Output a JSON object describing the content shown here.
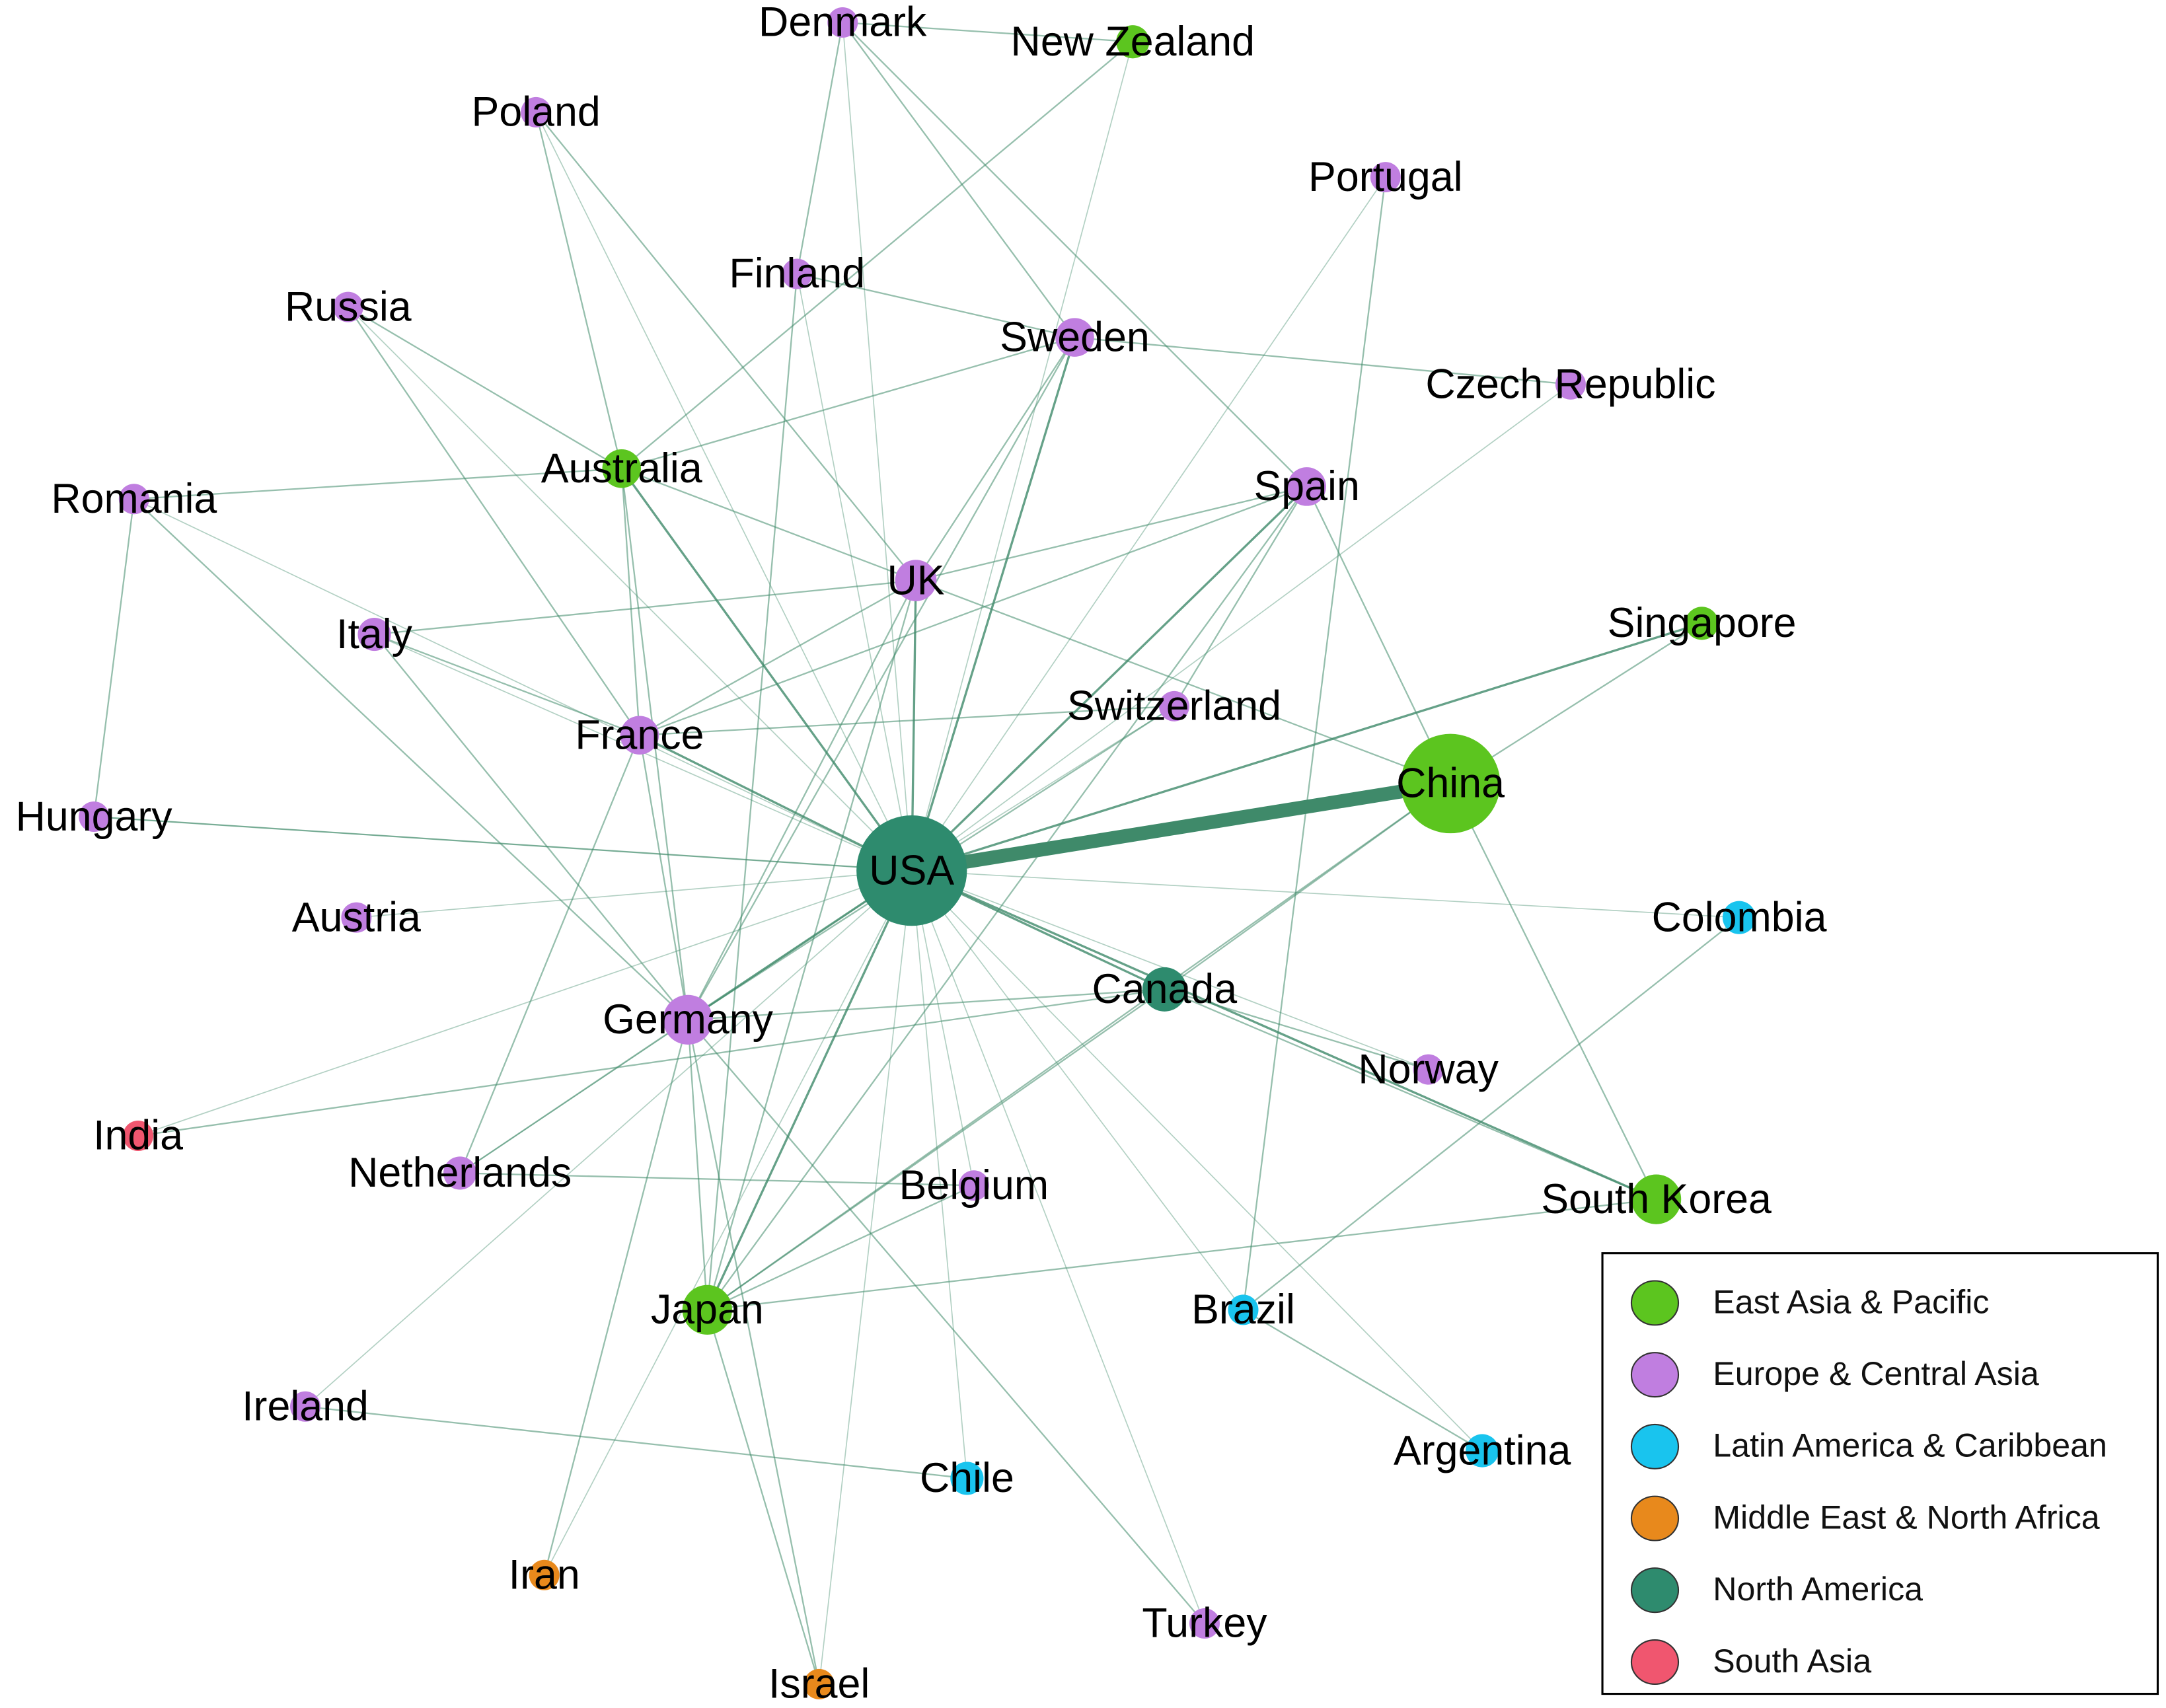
{
  "nodes": [
    {
      "label": "USA",
      "color": "#2e8b6e"
    },
    {
      "label": "China",
      "color": "#5cc51f"
    },
    {
      "label": "Canada",
      "color": "#2e8b6e"
    },
    {
      "label": "Japan",
      "color": "#5cc51f"
    },
    {
      "label": "South Korea",
      "color": "#5cc51f"
    },
    {
      "label": "Germany",
      "color": "#c07ee0"
    },
    {
      "label": "UK",
      "color": "#c07ee0"
    },
    {
      "label": "France",
      "color": "#c07ee0"
    },
    {
      "label": "Sweden",
      "color": "#c07ee0"
    },
    {
      "label": "Spain",
      "color": "#c07ee0"
    },
    {
      "label": "Australia",
      "color": "#5cc51f"
    },
    {
      "label": "Singapore",
      "color": "#5cc51f"
    },
    {
      "label": "New Zealand",
      "color": "#5cc51f"
    },
    {
      "label": "Denmark",
      "color": "#c07ee0"
    },
    {
      "label": "Poland",
      "color": "#c07ee0"
    },
    {
      "label": "Portugal",
      "color": "#c07ee0"
    },
    {
      "label": "Finland",
      "color": "#c07ee0"
    },
    {
      "label": "Russia",
      "color": "#c07ee0"
    },
    {
      "label": "Czech Republic",
      "color": "#c07ee0"
    },
    {
      "label": "Romania",
      "color": "#c07ee0"
    },
    {
      "label": "Italy",
      "color": "#c07ee0"
    },
    {
      "label": "Switzerland",
      "color": "#c07ee0"
    },
    {
      "label": "Hungary",
      "color": "#c07ee0"
    },
    {
      "label": "Austria",
      "color": "#c07ee0"
    },
    {
      "label": "Colombia",
      "color": "#19c4ee"
    },
    {
      "label": "Norway",
      "color": "#c07ee0"
    },
    {
      "label": "India",
      "color": "#f0566f"
    },
    {
      "label": "Netherlands",
      "color": "#c07ee0"
    },
    {
      "label": "Belgium",
      "color": "#c07ee0"
    },
    {
      "label": "Brazil",
      "color": "#19c4ee"
    },
    {
      "label": "Ireland",
      "color": "#c07ee0"
    },
    {
      "label": "Argentina",
      "color": "#19c4ee"
    },
    {
      "label": "Chile",
      "color": "#19c4ee"
    },
    {
      "label": "Iran",
      "color": "#e8891c"
    },
    {
      "label": "Turkey",
      "color": "#c07ee0"
    },
    {
      "label": "Israel",
      "color": "#e8891c"
    }
  ],
  "legend": {
    "entries": [
      {
        "label": "East Asia & Pacific",
        "color": "#5cc51f"
      },
      {
        "label": "Europe & Central Asia",
        "color": "#c07ee0"
      },
      {
        "label": "Latin America & Caribbean",
        "color": "#19c4ee"
      },
      {
        "label": "Middle East & North Africa",
        "color": "#e8891c"
      },
      {
        "label": "North America",
        "color": "#2e8b6e"
      },
      {
        "label": "South Asia",
        "color": "#f0566f"
      }
    ]
  }
}
